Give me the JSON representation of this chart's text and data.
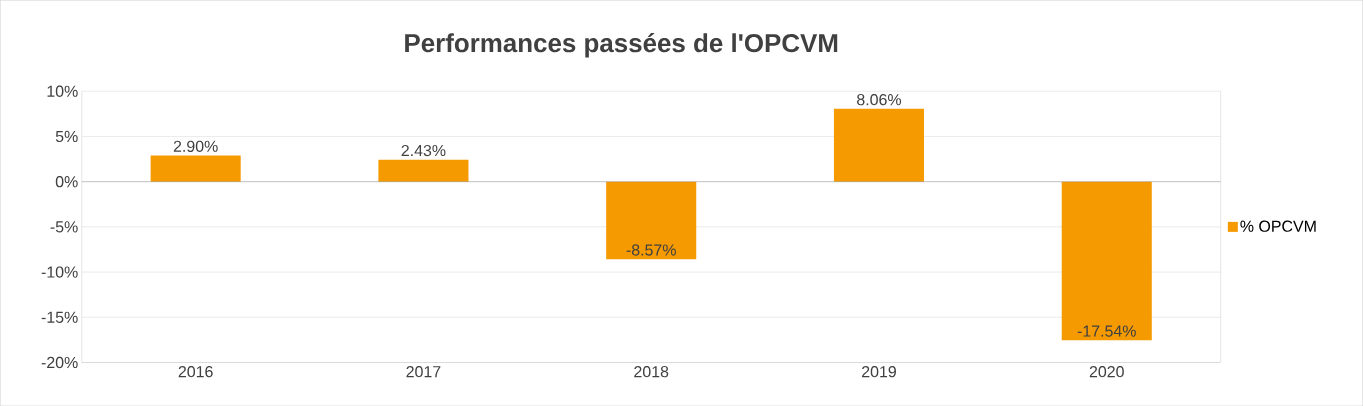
{
  "chart_data": {
    "type": "bar",
    "title": "Performances passées de l'OPCVM",
    "categories": [
      "2016",
      "2017",
      "2018",
      "2019",
      "2020"
    ],
    "series": [
      {
        "name": "% OPCVM",
        "color": "#f59a00",
        "values": [
          2.9,
          2.43,
          -8.57,
          8.06,
          -17.54
        ],
        "value_labels": [
          "2.90%",
          "2.43%",
          "-8.57%",
          "8.06%",
          "-17.54%"
        ]
      }
    ],
    "ylim": [
      -20,
      10
    ],
    "yticks": [
      {
        "value": -20,
        "label": "-20%"
      },
      {
        "value": -15,
        "label": "-15%"
      },
      {
        "value": -10,
        "label": "-10%"
      },
      {
        "value": -5,
        "label": "-5%"
      },
      {
        "value": 0,
        "label": "0%"
      },
      {
        "value": 5,
        "label": "5%"
      },
      {
        "value": 10,
        "label": "10%"
      }
    ],
    "grid": "y",
    "legend": "right"
  }
}
